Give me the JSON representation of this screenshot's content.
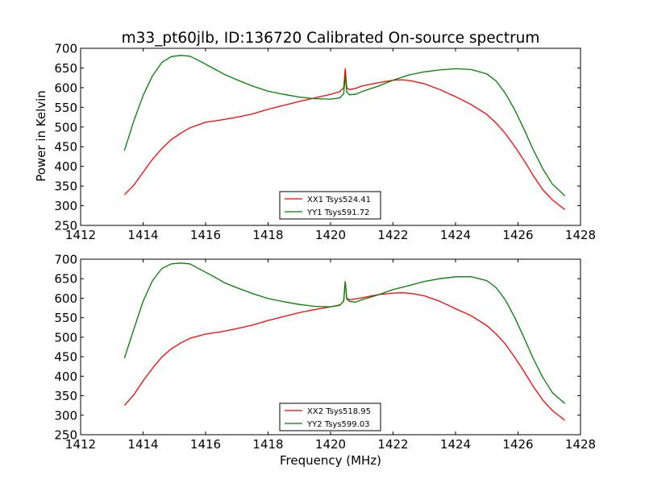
{
  "title": "m33_pt60jlb, ID:136720 Calibrated On-source spectrum",
  "ylabel": "Power in Kelvin",
  "xlabel": "Frequency (MHz)",
  "chart_data": [
    {
      "type": "line",
      "xlim": [
        1412,
        1428
      ],
      "ylim": [
        250,
        700
      ],
      "xticks": [
        1412,
        1414,
        1416,
        1418,
        1420,
        1422,
        1424,
        1426,
        1428
      ],
      "yticks": [
        250,
        300,
        350,
        400,
        450,
        500,
        550,
        600,
        650,
        700
      ],
      "legend_position": "lower-center",
      "series": [
        {
          "name": "XX1 Tsys524.41",
          "color": "#ff0000",
          "x": [
            1413.4,
            1413.7,
            1414.0,
            1414.3,
            1414.6,
            1414.9,
            1415.2,
            1415.5,
            1416.0,
            1416.5,
            1417.0,
            1417.5,
            1418.0,
            1418.5,
            1419.0,
            1419.5,
            1420.0,
            1420.3,
            1420.42,
            1420.47,
            1420.52,
            1420.6,
            1420.8,
            1421.0,
            1421.5,
            1422.0,
            1422.3,
            1422.6,
            1423.0,
            1423.5,
            1424.0,
            1424.5,
            1425.0,
            1425.3,
            1425.6,
            1425.9,
            1426.2,
            1426.5,
            1426.8,
            1427.1,
            1427.5
          ],
          "y": [
            328,
            352,
            385,
            418,
            445,
            468,
            484,
            498,
            512,
            518,
            525,
            533,
            545,
            555,
            565,
            574,
            583,
            590,
            600,
            648,
            600,
            595,
            598,
            604,
            612,
            619,
            620,
            617,
            610,
            595,
            577,
            557,
            532,
            510,
            483,
            450,
            414,
            375,
            340,
            315,
            290
          ]
        },
        {
          "name": "YY1 Tsys591.72",
          "color": "#008000",
          "x": [
            1413.4,
            1413.7,
            1414.0,
            1414.3,
            1414.6,
            1414.9,
            1415.2,
            1415.5,
            1415.8,
            1416.2,
            1416.6,
            1417.0,
            1417.5,
            1418.0,
            1418.5,
            1419.0,
            1419.5,
            1420.0,
            1420.3,
            1420.42,
            1420.47,
            1420.52,
            1420.6,
            1420.8,
            1421.0,
            1421.5,
            1422.0,
            1422.5,
            1423.0,
            1423.5,
            1424.0,
            1424.5,
            1425.0,
            1425.3,
            1425.6,
            1425.9,
            1426.2,
            1426.5,
            1426.8,
            1427.1,
            1427.5
          ],
          "y": [
            440,
            515,
            580,
            630,
            664,
            679,
            682,
            680,
            668,
            651,
            634,
            620,
            604,
            591,
            583,
            576,
            572,
            571,
            574,
            585,
            630,
            590,
            582,
            583,
            590,
            603,
            619,
            632,
            640,
            645,
            648,
            646,
            635,
            617,
            585,
            543,
            493,
            440,
            393,
            355,
            325
          ]
        }
      ]
    },
    {
      "type": "line",
      "xlim": [
        1412,
        1428
      ],
      "ylim": [
        250,
        700
      ],
      "xticks": [
        1412,
        1414,
        1416,
        1418,
        1420,
        1422,
        1424,
        1426,
        1428
      ],
      "yticks": [
        250,
        300,
        350,
        400,
        450,
        500,
        550,
        600,
        650,
        700
      ],
      "legend_position": "lower-center",
      "series": [
        {
          "name": "XX2 Tsys518.95",
          "color": "#ff0000",
          "x": [
            1413.4,
            1413.7,
            1414.0,
            1414.3,
            1414.6,
            1414.9,
            1415.2,
            1415.5,
            1416.0,
            1416.5,
            1417.0,
            1417.5,
            1418.0,
            1418.5,
            1419.0,
            1419.5,
            1420.0,
            1420.3,
            1420.42,
            1420.47,
            1420.52,
            1420.6,
            1420.8,
            1421.0,
            1421.5,
            1422.0,
            1422.3,
            1422.6,
            1423.0,
            1423.5,
            1424.0,
            1424.5,
            1425.0,
            1425.3,
            1425.6,
            1425.9,
            1426.2,
            1426.5,
            1426.8,
            1427.1,
            1427.5
          ],
          "y": [
            325,
            352,
            388,
            420,
            449,
            470,
            485,
            497,
            508,
            514,
            522,
            531,
            543,
            553,
            563,
            571,
            578,
            583,
            592,
            643,
            600,
            596,
            598,
            601,
            609,
            613,
            614,
            612,
            606,
            592,
            573,
            555,
            530,
            508,
            482,
            448,
            411,
            372,
            338,
            312,
            287
          ]
        },
        {
          "name": "YY2 Tsys599.03",
          "color": "#008000",
          "x": [
            1413.4,
            1413.7,
            1414.0,
            1414.3,
            1414.6,
            1414.9,
            1415.2,
            1415.5,
            1415.8,
            1416.2,
            1416.6,
            1417.0,
            1417.5,
            1418.0,
            1418.5,
            1419.0,
            1419.5,
            1420.0,
            1420.3,
            1420.42,
            1420.47,
            1420.52,
            1420.6,
            1420.8,
            1421.0,
            1421.5,
            1422.0,
            1422.5,
            1423.0,
            1423.5,
            1424.0,
            1424.5,
            1425.0,
            1425.3,
            1425.6,
            1425.9,
            1426.2,
            1426.5,
            1426.8,
            1427.1,
            1427.5
          ],
          "y": [
            446,
            520,
            592,
            645,
            676,
            688,
            690,
            688,
            675,
            658,
            640,
            627,
            612,
            599,
            591,
            584,
            579,
            578,
            582,
            593,
            642,
            598,
            592,
            590,
            596,
            608,
            622,
            632,
            643,
            650,
            655,
            655,
            645,
            627,
            595,
            550,
            497,
            443,
            396,
            358,
            330
          ]
        }
      ]
    }
  ]
}
